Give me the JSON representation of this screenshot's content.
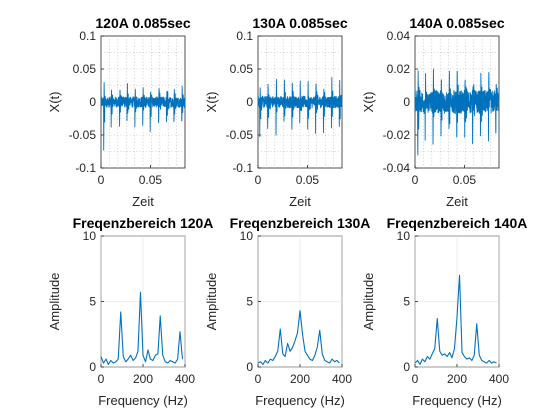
{
  "chart_data": [
    {
      "type": "line",
      "title": "120A 0.085sec",
      "xlabel": "Zeit",
      "ylabel": "X(t)",
      "xlim": [
        0,
        0.085
      ],
      "ylim": [
        -0.1,
        0.1
      ],
      "xticks": [
        0,
        0.05
      ],
      "xtick_labels": [
        "0",
        "0.05"
      ],
      "yticks": [
        -0.1,
        -0.05,
        0,
        0.05,
        0.1
      ],
      "ytick_labels": [
        "-0.1",
        "-0.05",
        "0",
        "0.05",
        "0.1"
      ],
      "grid": "dotted",
      "color": "#0072BD",
      "signal": {
        "noise": 0.008,
        "peaks": [
          0.003,
          0.0105,
          0.019,
          0.0265,
          0.0345,
          0.0425,
          0.05,
          0.0585,
          0.0665,
          0.074,
          0.082
        ],
        "peak_amp": 0.03,
        "dip_amp": -0.035,
        "first_dip": -0.075
      }
    },
    {
      "type": "line",
      "title": "130A 0.085sec",
      "xlabel": "Zeit",
      "ylabel": "X(t)",
      "xlim": [
        0,
        0.085
      ],
      "ylim": [
        -0.1,
        0.1
      ],
      "xticks": [
        0,
        0.05
      ],
      "xtick_labels": [
        "0",
        "0.05"
      ],
      "yticks": [
        -0.1,
        -0.05,
        0,
        0.05,
        0.1
      ],
      "ytick_labels": [
        "-0.1",
        "-0.05",
        "0",
        "0.05",
        "0.1"
      ],
      "grid": "dotted",
      "color": "#0072BD",
      "signal": {
        "noise": 0.009,
        "peaks": [
          0.002,
          0.01,
          0.0185,
          0.0265,
          0.0345,
          0.0425,
          0.0505,
          0.0585,
          0.0665,
          0.0745,
          0.0825
        ],
        "peak_amp": 0.038,
        "dip_amp": -0.04,
        "first_dip": -0.06
      }
    },
    {
      "type": "line",
      "title": "140A 0.085sec",
      "xlabel": "Zeit",
      "ylabel": "X(t)",
      "xlim": [
        0,
        0.085
      ],
      "ylim": [
        -0.04,
        0.04
      ],
      "xticks": [
        0,
        0.05
      ],
      "xtick_labels": [
        "0",
        "0.05"
      ],
      "yticks": [
        -0.04,
        -0.02,
        0,
        0.02,
        0.04
      ],
      "ytick_labels": [
        "-0.04",
        "-0.02",
        "0",
        "0.02",
        "0.04"
      ],
      "grid": "dotted",
      "color": "#0072BD",
      "signal": {
        "noise": 0.007,
        "peaks": [
          0.003,
          0.0105,
          0.0185,
          0.0265,
          0.0345,
          0.0425,
          0.0505,
          0.0585,
          0.0665,
          0.0745,
          0.082
        ],
        "peak_amp": 0.022,
        "dip_amp": -0.02,
        "first_dip": -0.036
      }
    },
    {
      "type": "line",
      "title": "Freqenzbereich 120A",
      "xlabel": "Frequency (Hz)",
      "ylabel": "Amplitude",
      "xlim": [
        0,
        400
      ],
      "ylim": [
        0,
        10
      ],
      "xticks": [
        0,
        200,
        400
      ],
      "xtick_labels": [
        "0",
        "200",
        "400"
      ],
      "yticks": [
        0,
        5,
        10
      ],
      "ytick_labels": [
        "0",
        "5",
        "10"
      ],
      "grid": "solid",
      "color": "#0072BD",
      "x": [
        0,
        12,
        24,
        35,
        47,
        59,
        71,
        82,
        94,
        106,
        118,
        129,
        141,
        153,
        165,
        176,
        188,
        200,
        212,
        224,
        235,
        247,
        259,
        271,
        282,
        294,
        306,
        318,
        329,
        341,
        353,
        365,
        376,
        388
      ],
      "y": [
        0.8,
        0.3,
        0.6,
        0.2,
        0.5,
        0.3,
        0.4,
        0.6,
        4.2,
        0.8,
        0.4,
        0.6,
        0.9,
        0.5,
        0.7,
        1.2,
        5.7,
        0.9,
        0.4,
        1.3,
        0.6,
        0.5,
        0.9,
        1.0,
        3.9,
        0.9,
        0.4,
        0.3,
        0.5,
        0.4,
        0.3,
        0.6,
        2.7,
        0.6
      ]
    },
    {
      "type": "line",
      "title": "Freqenzbereich 130A",
      "xlabel": "Frequency (Hz)",
      "ylabel": "Amplitude",
      "xlim": [
        0,
        400
      ],
      "ylim": [
        0,
        10
      ],
      "xticks": [
        0,
        200,
        400
      ],
      "xtick_labels": [
        "0",
        "200",
        "400"
      ],
      "yticks": [
        0,
        5,
        10
      ],
      "ytick_labels": [
        "0",
        "5",
        "10"
      ],
      "grid": "solid",
      "color": "#0072BD",
      "x": [
        0,
        12,
        24,
        35,
        47,
        59,
        71,
        82,
        94,
        106,
        118,
        129,
        141,
        153,
        165,
        176,
        188,
        200,
        212,
        224,
        235,
        247,
        259,
        271,
        282,
        294,
        306,
        318,
        329,
        341,
        353,
        365,
        376,
        388
      ],
      "y": [
        0.3,
        0.4,
        0.2,
        0.5,
        0.3,
        0.6,
        0.5,
        0.8,
        1.2,
        2.9,
        1.0,
        0.8,
        1.8,
        1.2,
        1.5,
        2.0,
        2.6,
        4.3,
        2.5,
        1.2,
        0.9,
        0.6,
        0.5,
        0.9,
        1.5,
        2.8,
        1.0,
        0.5,
        0.4,
        0.3,
        0.6,
        0.4,
        0.5,
        0.3
      ]
    },
    {
      "type": "line",
      "title": "Freqenzbereich 140A",
      "xlabel": "Frequency (Hz)",
      "ylabel": "Amplitude",
      "xlim": [
        0,
        400
      ],
      "ylim": [
        0,
        10
      ],
      "xticks": [
        0,
        200,
        400
      ],
      "xtick_labels": [
        "0",
        "200",
        "400"
      ],
      "yticks": [
        0,
        5,
        10
      ],
      "ytick_labels": [
        "0",
        "5",
        "10"
      ],
      "grid": "solid",
      "color": "#0072BD",
      "x": [
        0,
        12,
        24,
        35,
        47,
        59,
        71,
        82,
        94,
        106,
        118,
        129,
        141,
        153,
        165,
        176,
        188,
        200,
        212,
        224,
        235,
        247,
        259,
        271,
        282,
        294,
        306,
        318,
        329,
        341,
        353,
        365,
        376,
        388
      ],
      "y": [
        0.3,
        0.5,
        0.2,
        0.6,
        0.4,
        0.8,
        0.6,
        1.0,
        1.4,
        3.7,
        1.2,
        0.9,
        1.0,
        0.8,
        1.1,
        0.7,
        1.4,
        3.8,
        7.0,
        1.1,
        0.8,
        0.6,
        0.7,
        0.5,
        0.9,
        3.3,
        0.9,
        0.5,
        0.4,
        0.3,
        0.5,
        0.3,
        0.4,
        0.3
      ]
    }
  ]
}
